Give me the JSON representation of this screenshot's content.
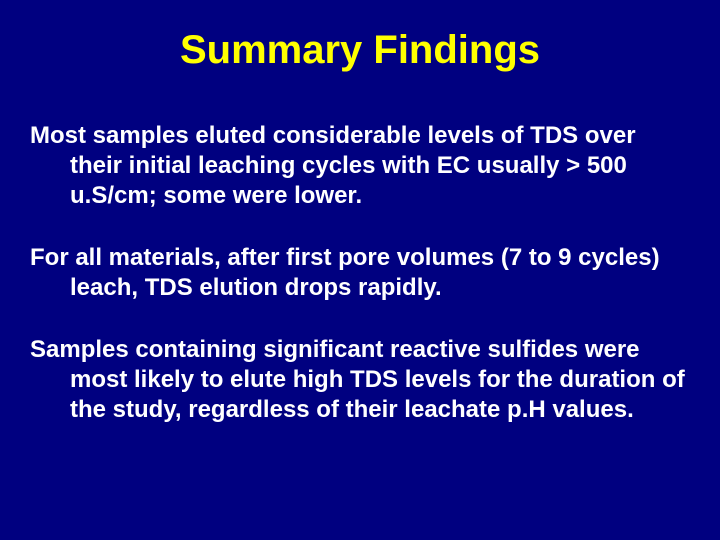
{
  "slide": {
    "title": "Summary Findings",
    "bullets": [
      "Most samples eluted considerable levels of TDS over their initial leaching cycles with EC usually > 500 u.S/cm; some were lower.",
      "For all materials, after first pore volumes (7 to 9 cycles) leach, TDS elution drops rapidly.",
      "Samples containing significant reactive sulfides were most likely to elute high TDS levels for the duration of the study, regardless of their leachate p.H values."
    ],
    "colors": {
      "background": "#000080",
      "title": "#ffff00",
      "body": "#ffffff"
    },
    "typography": {
      "title_fontsize": 40,
      "body_fontsize": 24,
      "font_weight": "bold",
      "font_family": "Arial"
    }
  }
}
